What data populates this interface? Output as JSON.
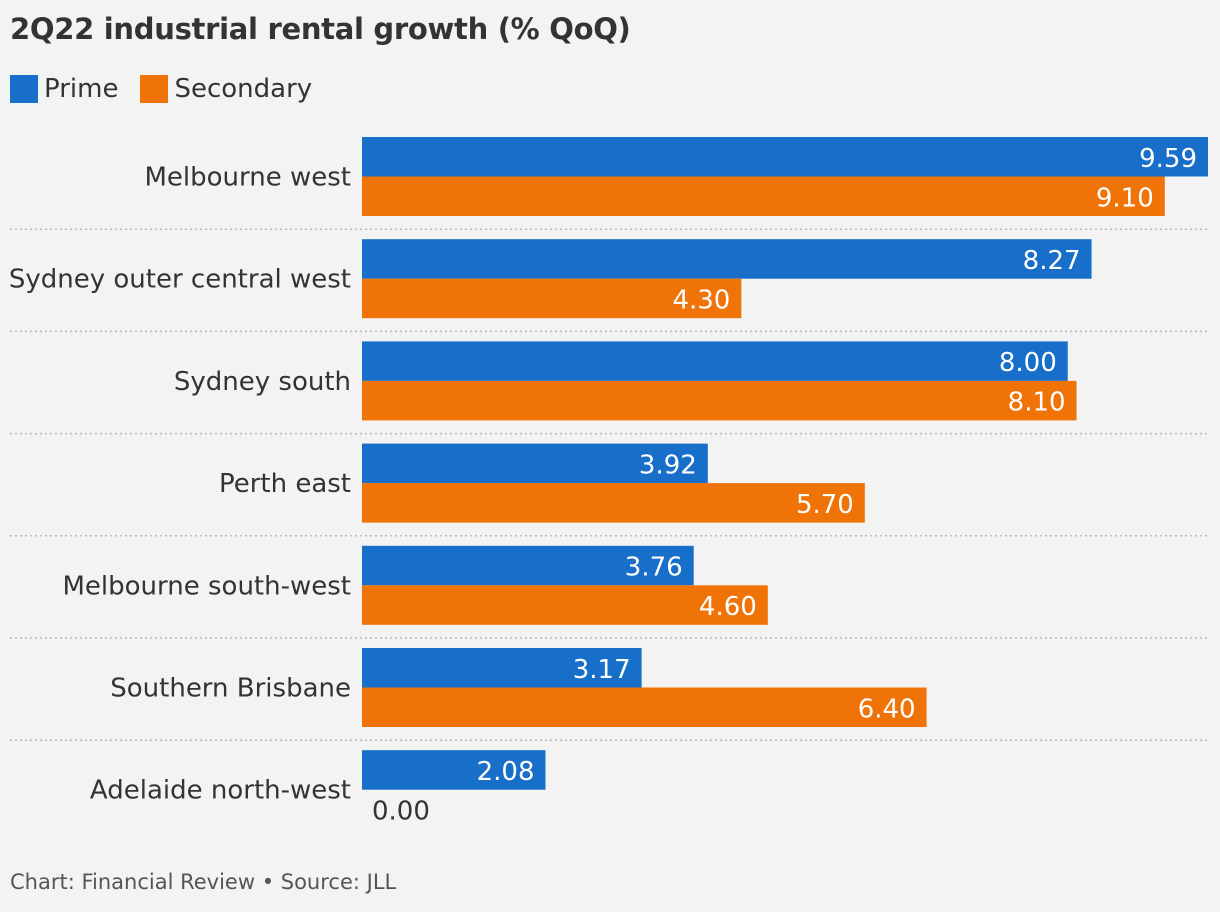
{
  "chart_data": {
    "type": "bar",
    "orientation": "horizontal",
    "title": "2Q22 industrial rental growth (% QoQ)",
    "categories": [
      "Melbourne west",
      "Sydney outer central west",
      "Sydney south",
      "Perth east",
      "Melbourne south-west",
      "Southern Brisbane",
      "Adelaide north-west"
    ],
    "series": [
      {
        "name": "Prime",
        "color": "#176fc9",
        "values": [
          9.59,
          8.27,
          8.0,
          3.92,
          3.76,
          3.17,
          2.08
        ]
      },
      {
        "name": "Secondary",
        "color": "#f07307",
        "values": [
          9.1,
          4.3,
          8.1,
          5.7,
          4.6,
          6.4,
          0.0
        ]
      }
    ],
    "value_labels": [
      [
        "9.59",
        "8.27",
        "8.00",
        "3.92",
        "3.76",
        "3.17",
        "2.08"
      ],
      [
        "9.10",
        "4.30",
        "8.10",
        "5.70",
        "4.60",
        "6.40",
        "0.00"
      ]
    ],
    "xlim": [
      0,
      9.59
    ],
    "legend_position": "top-left",
    "grid": false,
    "separators": "dotted"
  },
  "source": "Chart: Financial Review • Source: JLL"
}
